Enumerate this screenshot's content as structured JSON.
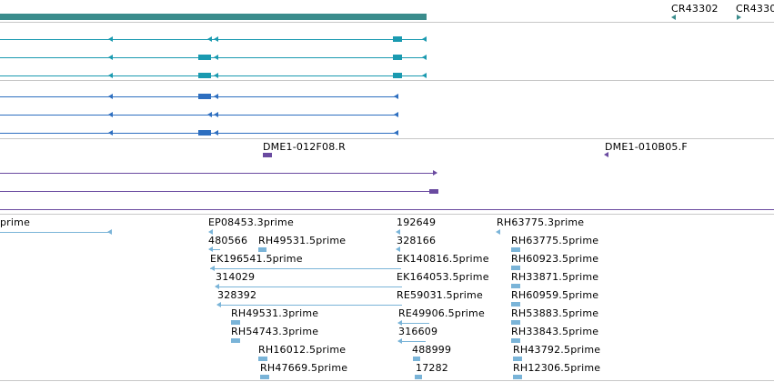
{
  "colors": {
    "gene_bar": "#3a8c8c",
    "transcript_teal": "#1a9ab0",
    "transcript_blue": "#2e6fc0",
    "clone_purple": "#6a4aa0",
    "est_blue": "#7ab4d8",
    "separator": "#c8c8c8"
  },
  "tracks": {
    "genes": {
      "labels": [
        "CR43302",
        "CR4330"
      ]
    },
    "clones": {
      "labels": [
        "DME1-012F08.R",
        "DME1-010B05.F"
      ]
    },
    "ests": {
      "labels": [
        "prime",
        "EP08453.3prime",
        "192649",
        "RH63775.3prime",
        "480566",
        "RH49531.5prime",
        "328166",
        "RH63775.5prime",
        "EK196541.5prime",
        "EK140816.5prime",
        "RH60923.5prime",
        "314029",
        "EK164053.5prime",
        "RH33871.5prime",
        "328392",
        "RE59031.5prime",
        "RH60959.5prime",
        "RH49531.3prime",
        "RE49906.5prime",
        "RH53883.5prime",
        "RH54743.3prime",
        "316609",
        "RH33843.5prime",
        "RH16012.5prime",
        "488999",
        "RH43792.5prime",
        "RH47669.5prime",
        "17282",
        "RH12306.5prime"
      ]
    }
  }
}
